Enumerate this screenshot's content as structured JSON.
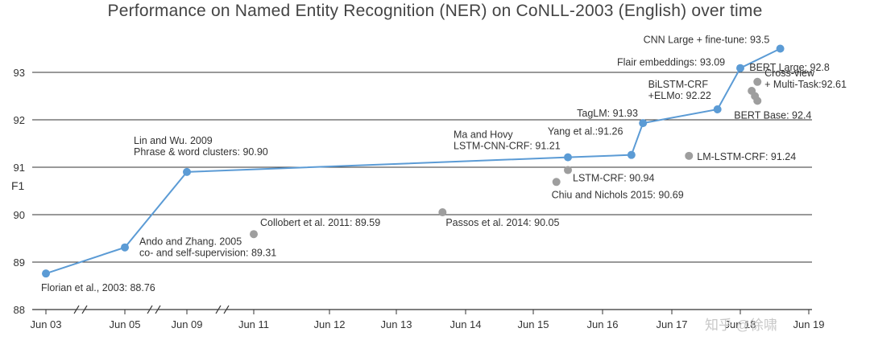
{
  "chart_data": {
    "type": "scatter",
    "title": "Performance on Named Entity Recognition (NER) on CoNLL-2003 (English) over time",
    "ylabel": "F1",
    "xlabel": "",
    "ylim": [
      88,
      93.5
    ],
    "yticks": [
      88,
      89,
      90,
      91,
      92,
      93
    ],
    "grid": "horizontal",
    "x_ticks": [
      "Jun 03",
      "Jun 05",
      "Jun 09",
      "Jun 11",
      "Jun 12",
      "Jun 13",
      "Jun 14",
      "Jun 15",
      "Jun 16",
      "Jun 17",
      "Jun 18",
      "Jun 19"
    ],
    "axis_breaks_after": [
      "Jun 03",
      "Jun 05",
      "Jun 09"
    ],
    "colors": {
      "sota": "#5b9bd5",
      "other": "#9e9e9e",
      "grid": "#333333"
    },
    "series": [
      {
        "role": "sota",
        "points": [
          {
            "x": "2003-06",
            "y": 88.76,
            "label": [
              "Florian et al., 2003: 88.76"
            ]
          },
          {
            "x": "2005-06",
            "y": 89.31,
            "label": [
              "Ando and Zhang. 2005",
              "co- and self-supervision: 89.31"
            ]
          },
          {
            "x": "2009-06",
            "y": 90.9,
            "label": [
              "Lin and Wu. 2009",
              "Phrase & word clusters: 90.90"
            ]
          },
          {
            "x": "2015-12",
            "y": 91.21,
            "label": [
              "Ma and Hovy",
              "LSTM-CNN-CRF: 91.21"
            ]
          },
          {
            "x": "2016-11",
            "y": 91.26,
            "label": [
              "Yang et al.:91.26"
            ]
          },
          {
            "x": "2017-01",
            "y": 91.93,
            "label": [
              "TagLM: 91.93"
            ]
          },
          {
            "x": "2018-02",
            "y": 92.22,
            "label": [
              "BiLSTM-CRF",
              "+ELMo: 92.22"
            ]
          },
          {
            "x": "2018-06",
            "y": 93.09,
            "label": [
              "Flair embeddings: 93.09"
            ]
          },
          {
            "x": "2019-01",
            "y": 93.5,
            "label": [
              "CNN Large + fine-tune: 93.5"
            ]
          }
        ]
      },
      {
        "role": "other",
        "points": [
          {
            "x": "2011-06",
            "y": 89.59,
            "label": [
              "Collobert et al. 2011: 89.59"
            ]
          },
          {
            "x": "2014-02",
            "y": 90.05,
            "label": [
              "Passos et al. 2014: 90.05"
            ]
          },
          {
            "x": "2015-10",
            "y": 90.69,
            "label": [
              "Chiu and Nichols 2015: 90.69"
            ]
          },
          {
            "x": "2015-12",
            "y": 90.94,
            "label": [
              "LSTM-CRF: 90.94"
            ]
          },
          {
            "x": "2017-09",
            "y": 91.24,
            "label": [
              "LM-LSTM-CRF: 91.24"
            ]
          },
          {
            "x": "2018-09",
            "y": 92.8,
            "label": [
              "BERT Large: 92.8"
            ]
          },
          {
            "x": "2018-08",
            "y": 92.61,
            "label": [
              "Cross-view",
              "+ Multi-Task:92.61"
            ]
          },
          {
            "x": "2018-09",
            "y": 92.4,
            "label": [
              "BERT Base: 92.4"
            ]
          }
        ]
      }
    ]
  },
  "watermark": "知乎 @徐啸"
}
